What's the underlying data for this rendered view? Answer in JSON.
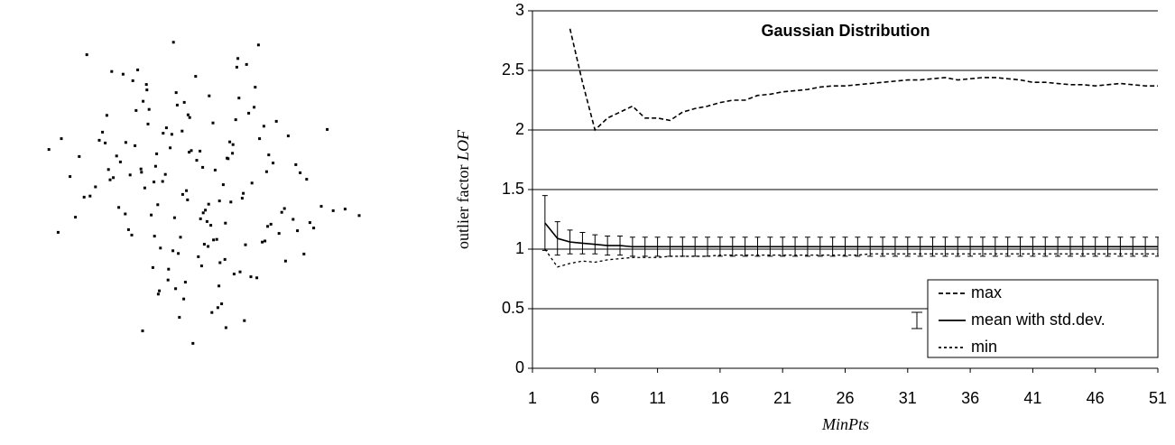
{
  "chart_data": [
    {
      "type": "scatter",
      "x": [
        0.12,
        -0.85,
        1.34,
        -0.47,
        0.66,
        -1.92,
        0.03,
        2.21,
        -0.31,
        0.95,
        -1.18,
        0.44,
        -0.09,
        1.67,
        -2.45,
        0.28,
        -0.73,
        1.05,
        -0.58,
        0.81,
        0.17,
        -1.36,
        2.03,
        -0.22,
        0.59,
        -0.98,
        1.42,
        -1.61,
        0.36,
        -0.05,
        1.13,
        -0.67,
        0.48,
        -2.12,
        0.91,
        -0.34,
        1.88,
        -1.04,
        0.24,
        -0.51,
        -0.16,
        0.72,
        -1.49,
        1.26,
        -0.83,
        2.57,
        -0.27,
        0.63,
        -1.75,
        0.08,
        0.39,
        -0.94,
        1.57,
        -0.12,
        -2.68,
        0.85,
        -0.41,
        1.19,
        -1.27,
        0.54,
        -0.62,
        1.38,
        -0.19,
        0.77,
        -1.55,
        0.31,
        2.35,
        -0.88,
        0.14,
        -1.09,
        0.97,
        -0.36,
        1.74,
        -2.03,
        0.46,
        -0.71,
        1.29,
        -0.02,
        -1.43,
        0.68,
        -0.25,
        1.01,
        -1.82,
        0.57,
        -0.44,
        2.14,
        -1.13,
        0.21,
        -0.66,
        1.52,
        0.05,
        -1.21,
        0.83,
        -0.39,
        1.96,
        -0.79,
        0.33,
        -1.64,
        1.11,
        -0.14,
        2.79,
        -0.57,
        0.42,
        -1.31,
        0.74,
        -2.29,
        1.36,
        -0.08,
        0.89,
        -0.95,
        -0.33,
        1.62,
        -0.69,
        0.19,
        -1.98,
        1.07,
        -0.48,
        0.61,
        -1.15,
        2.46,
        0.27,
        -0.76,
        1.21,
        -1.58,
        0.51,
        -0.18,
        1.83,
        -0.91,
        0.35,
        -2.51,
        1.46,
        -0.29,
        0.79,
        -1.39,
        0.11,
        -0.64,
        2.08,
        -1.07,
        0.58,
        -0.21,
        -1.69,
        0.93,
        -0.53,
        1.31,
        -0.87,
        0.16,
        -2.19,
        1.69,
        -0.38,
        0.71,
        0.47,
        -1.26,
        1.16,
        -0.11,
        -0.74,
        1.91,
        -1.52,
        0.26,
        -0.97,
        3.05
      ],
      "y": [
        -0.54,
        1.21,
        0.33,
        -1.47,
        0.88,
        -0.12,
        2.09,
        -0.71,
        1.56,
        -1.02,
        0.27,
        -2.18,
        0.69,
        -0.35,
        0.94,
        1.73,
        -0.86,
        -1.61,
        0.15,
        2.42,
        -0.43,
        0.51,
        -1.19,
        1.08,
        -2.55,
        0.38,
        -0.64,
        1.37,
        -0.93,
        0.72,
        1.89,
        -0.28,
        -1.35,
        0.61,
        -0.07,
        -1.83,
        0.46,
        2.21,
        -0.59,
        1.14,
        -1.71,
        0.83,
        0.22,
        -0.97,
        1.48,
        -0.39,
        -2.36,
        0.57,
        0.91,
        -1.24,
        0.36,
        1.63,
        -0.81,
        -0.19,
        0.74,
        -1.52,
        1.02,
        2.67,
        -0.45,
        0.09,
        -1.08,
        0.64,
        -2.02,
        1.29,
        0.18,
        -0.66,
        -0.31,
        1.94,
        -1.41,
        0.81,
        2.31,
        -0.52,
        0.99,
        -0.14,
        -1.78,
        0.43,
        1.17,
        -2.84,
        0.62,
        -0.23,
        -0.88,
        1.41,
        0.05,
        -1.29,
        0.77,
        -0.61,
        2.01,
        -0.38,
        -1.93,
        1.26,
        0.54,
        -0.74,
        1.69,
        -1.13,
        0.31,
        -0.47,
        -2.27,
        0.86,
        1.52,
        -0.02,
        -0.36,
        1.04,
        -0.92,
        2.13,
        -1.56,
        0.24,
        -0.68,
        1.33,
        -0.16,
        -2.61,
        1.79,
        -0.42,
        0.66,
        -1.01,
        2.49,
        0.12,
        -1.67,
        0.58,
        -0.84,
        1.11,
        -0.27,
        -1.44,
        0.94,
        0.37,
        -2.11,
        1.61,
        -0.55,
        0.03,
        1.23,
        -0.79,
        0.49,
        -1.18,
        2.26,
        -0.33,
        0.71,
        -1.87,
        0.19,
        1.46,
        -0.62,
        -0.09,
        1.06,
        -2.42,
        0.28,
        -0.95,
        1.84,
        0.41,
        -0.51,
        -1.32,
        2.72,
        0.67,
        -0.21,
        0.87,
        -1.63,
        1.38,
        0.14,
        -0.76,
        2.18,
        -1.05,
        0.32,
        -0.48
      ],
      "color": "#000000"
    },
    {
      "type": "line",
      "title": "Gaussian Distribution",
      "xlabel": "MinPts",
      "ylabel": "outlier factor",
      "ylabel_emphasis": "LOF",
      "x": [
        2,
        3,
        4,
        5,
        6,
        7,
        8,
        9,
        10,
        11,
        12,
        13,
        14,
        15,
        16,
        17,
        18,
        19,
        20,
        21,
        22,
        23,
        24,
        25,
        26,
        27,
        28,
        29,
        30,
        31,
        32,
        33,
        34,
        35,
        36,
        37,
        38,
        39,
        40,
        41,
        42,
        43,
        44,
        45,
        46,
        47,
        48,
        49,
        50,
        51
      ],
      "xlim": [
        1,
        51
      ],
      "xticks": [
        1,
        6,
        11,
        16,
        21,
        26,
        31,
        36,
        41,
        46,
        51
      ],
      "ylim": [
        0,
        3
      ],
      "yticks": [
        0,
        0.5,
        1,
        1.5,
        2,
        2.5,
        3
      ],
      "grid": true,
      "legend": "lower right",
      "series": [
        {
          "name": "max",
          "color": "#000000",
          "line_style": "dashed",
          "values": [
            null,
            null,
            2.85,
            2.4,
            2.0,
            2.1,
            2.15,
            2.2,
            2.1,
            2.1,
            2.08,
            2.15,
            2.18,
            2.2,
            2.23,
            2.25,
            2.25,
            2.29,
            2.3,
            2.32,
            2.33,
            2.34,
            2.36,
            2.37,
            2.37,
            2.38,
            2.39,
            2.4,
            2.41,
            2.42,
            2.42,
            2.43,
            2.44,
            2.42,
            2.43,
            2.44,
            2.44,
            2.43,
            2.42,
            2.4,
            2.4,
            2.39,
            2.38,
            2.38,
            2.37,
            2.38,
            2.39,
            2.38,
            2.37,
            2.37
          ]
        },
        {
          "name": "mean with std.dev.",
          "color": "#000000",
          "line_style": "solid",
          "values": [
            1.22,
            1.09,
            1.06,
            1.05,
            1.04,
            1.03,
            1.03,
            1.02,
            1.02,
            1.02,
            1.02,
            1.02,
            1.02,
            1.02,
            1.02,
            1.02,
            1.02,
            1.02,
            1.02,
            1.02,
            1.02,
            1.02,
            1.02,
            1.02,
            1.02,
            1.02,
            1.02,
            1.02,
            1.02,
            1.02,
            1.02,
            1.02,
            1.02,
            1.02,
            1.02,
            1.02,
            1.02,
            1.02,
            1.02,
            1.02,
            1.02,
            1.02,
            1.02,
            1.02,
            1.02,
            1.02,
            1.02,
            1.02,
            1.02,
            1.02
          ],
          "errors": [
            0.23,
            0.14,
            0.1,
            0.09,
            0.08,
            0.08,
            0.08,
            0.08,
            0.08,
            0.08,
            0.08,
            0.08,
            0.08,
            0.08,
            0.08,
            0.08,
            0.08,
            0.08,
            0.08,
            0.08,
            0.08,
            0.08,
            0.08,
            0.08,
            0.08,
            0.08,
            0.08,
            0.08,
            0.08,
            0.08,
            0.08,
            0.08,
            0.08,
            0.08,
            0.08,
            0.08,
            0.08,
            0.08,
            0.08,
            0.08,
            0.08,
            0.08,
            0.08,
            0.08,
            0.08,
            0.08,
            0.08,
            0.08,
            0.08,
            0.08
          ]
        },
        {
          "name": "min",
          "color": "#000000",
          "line_style": "dotted",
          "values": [
            1.0,
            0.85,
            0.88,
            0.9,
            0.89,
            0.91,
            0.92,
            0.93,
            0.93,
            0.93,
            0.94,
            0.94,
            0.94,
            0.94,
            0.95,
            0.95,
            0.95,
            0.95,
            0.95,
            0.95,
            0.95,
            0.95,
            0.95,
            0.95,
            0.95,
            0.95,
            0.96,
            0.96,
            0.96,
            0.96,
            0.96,
            0.96,
            0.96,
            0.96,
            0.96,
            0.96,
            0.96,
            0.96,
            0.96,
            0.96,
            0.96,
            0.96,
            0.96,
            0.96,
            0.96,
            0.96,
            0.96,
            0.96,
            0.96,
            0.96
          ]
        }
      ]
    }
  ]
}
